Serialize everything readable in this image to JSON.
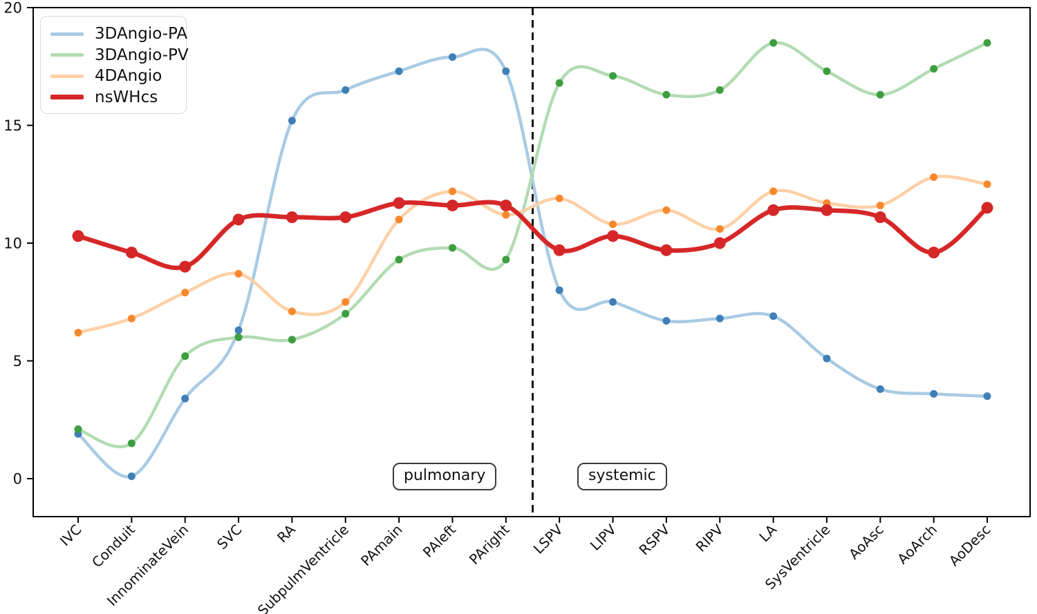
{
  "chart_data": {
    "type": "line",
    "title": "",
    "xlabel": "",
    "ylabel": "",
    "grid": false,
    "legend_position": "upper left",
    "categories": [
      "IVC",
      "Conduit",
      "InnominateVein",
      "SVC",
      "RA",
      "SubpulmVentricle",
      "PAmain",
      "PAleft",
      "PAright",
      "LSPV",
      "LIPV",
      "RSPV",
      "RIPV",
      "LA",
      "SysVentricle",
      "AoAsc",
      "AoArch",
      "AoDesc"
    ],
    "yticks": [
      0,
      5,
      10,
      15,
      20
    ],
    "ylim": [
      -1.6,
      20
    ],
    "series": [
      {
        "name": "3DAngio-PA",
        "line_color": "#a9cbe4",
        "marker_color": "#3f7fb6",
        "values": [
          1.9,
          0.1,
          3.4,
          6.3,
          15.2,
          16.5,
          17.3,
          17.9,
          17.3,
          8.0,
          7.5,
          6.7,
          6.8,
          6.9,
          5.1,
          3.8,
          3.6,
          3.5
        ]
      },
      {
        "name": "3DAngio-PV",
        "line_color": "#b2dcb2",
        "marker_color": "#3d9e40",
        "values": [
          2.1,
          1.5,
          5.2,
          6.0,
          5.9,
          7.0,
          9.3,
          9.8,
          9.3,
          16.8,
          17.1,
          16.3,
          16.5,
          18.5,
          17.3,
          16.3,
          17.4,
          18.5
        ]
      },
      {
        "name": "4DAngio",
        "line_color": "#ffd0a6",
        "marker_color": "#f8882c",
        "values": [
          6.2,
          6.8,
          7.9,
          8.7,
          7.1,
          7.5,
          11.0,
          12.2,
          11.2,
          11.9,
          10.8,
          11.4,
          10.6,
          12.2,
          11.7,
          11.6,
          12.8,
          12.5
        ]
      },
      {
        "name": "nsWHcs",
        "line_color": "#d62728",
        "marker_color": "#d62728",
        "values": [
          10.3,
          9.6,
          9.0,
          11.0,
          11.1,
          11.1,
          11.7,
          11.6,
          11.6,
          9.7,
          10.3,
          9.7,
          10.0,
          11.4,
          11.4,
          11.1,
          9.6,
          11.5
        ]
      }
    ],
    "divider": {
      "between_categories": [
        "PAright",
        "LSPV"
      ],
      "index": 8.5,
      "style": "dashed",
      "color": "#111111"
    },
    "annotations": [
      {
        "label": "pulmonary",
        "region": "left-of-divider"
      },
      {
        "label": "systemic",
        "region": "right-of-divider"
      }
    ]
  },
  "colors": {
    "axis": "#000000",
    "background": "#ffffff",
    "annotation_border": "#3a3a3a",
    "legend_border": "#d9d9d9",
    "tick_label": "#111111"
  }
}
